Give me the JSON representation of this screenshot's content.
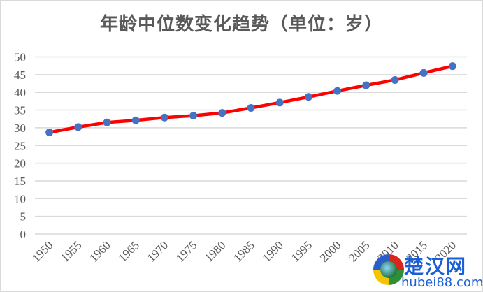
{
  "chart_data": {
    "type": "line",
    "title": "年龄中位数变化趋势（单位：岁）",
    "xlabel": "",
    "ylabel": "",
    "categories": [
      "1950",
      "1955",
      "1960",
      "1965",
      "1970",
      "1975",
      "1980",
      "1985",
      "1990",
      "1995",
      "2000",
      "2005",
      "2010",
      "2015",
      "2020"
    ],
    "series": [
      {
        "name": "年龄中位数",
        "values": [
          28.7,
          30.2,
          31.5,
          32.1,
          32.9,
          33.4,
          34.2,
          35.6,
          37.1,
          38.7,
          40.4,
          42.0,
          43.5,
          45.5,
          47.4
        ],
        "line_color": "#ff0000",
        "marker_color": "#4472c4"
      }
    ],
    "ylim": [
      0,
      50
    ],
    "yticks": [
      0,
      5,
      10,
      15,
      20,
      25,
      30,
      35,
      40,
      45,
      50
    ],
    "grid": true,
    "legend": "none"
  },
  "colors": {
    "line": "#ff0000",
    "marker": "#4472c4",
    "grid": "#d9d9d9",
    "text": "#595959",
    "border": "#d9d9d9"
  },
  "watermark": {
    "cn": "楚汉网",
    "en": "hubei88.com"
  }
}
